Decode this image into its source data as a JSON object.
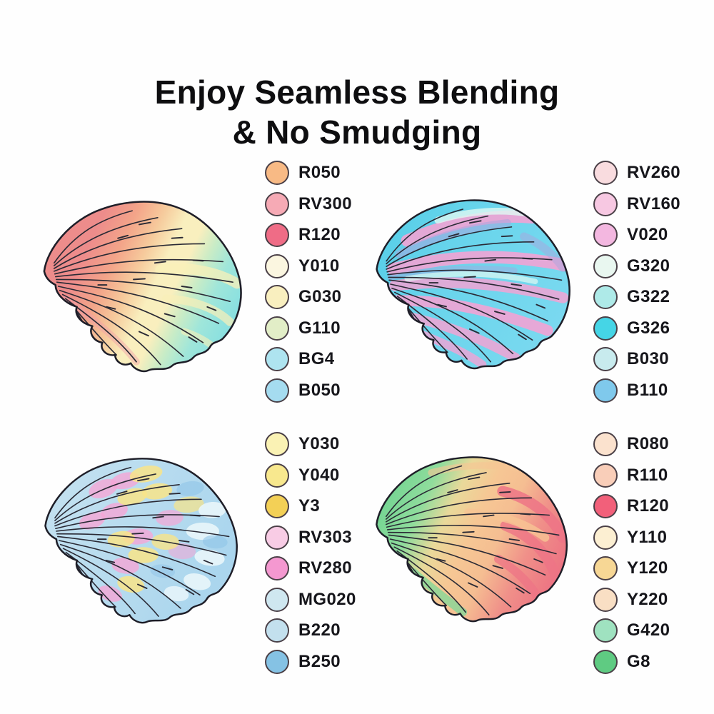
{
  "title": {
    "line1": "Enjoy Seamless Blending",
    "line2": "& No Smudging"
  },
  "ink": {
    "background": "#fefefe",
    "title_color": "#0e0e10",
    "label_color": "#16161b",
    "swatch_border": "#4a4047",
    "outline": "#1e1e28",
    "ridge": "#2a2a35"
  },
  "panels": [
    {
      "name": "top-left",
      "shell": {
        "style": "gradient coral to yellow to teal",
        "colors": [
          "#ED8C8B",
          "#F3A489",
          "#F6CA9C",
          "#F9EFBE",
          "#C9ECC6",
          "#9FE6DA",
          "#83DEE2",
          "#F9F0B8",
          "#F2A0A8"
        ]
      },
      "swatches": [
        {
          "code": "R050",
          "color": "#F8BA85"
        },
        {
          "code": "RV300",
          "color": "#F6AAB5"
        },
        {
          "code": "R120",
          "color": "#EF6C86"
        },
        {
          "code": "Y010",
          "color": "#FBF6E0"
        },
        {
          "code": "G030",
          "color": "#F9EFBF"
        },
        {
          "code": "G110",
          "color": "#E2EEC7"
        },
        {
          "code": "BG4",
          "color": "#AEE4F0"
        },
        {
          "code": "B050",
          "color": "#A5DCF0"
        }
      ]
    },
    {
      "name": "top-right",
      "shell": {
        "style": "cyan base with pink and lavender stripes",
        "colors": [
          "#58CFE8",
          "#6AD5EC",
          "#7BD9F0",
          "#F2A3D4",
          "#A9A6DE",
          "#DFF9F2"
        ]
      },
      "swatches": [
        {
          "code": "RV260",
          "color": "#F9DCDF"
        },
        {
          "code": "RV160",
          "color": "#F7C8E2"
        },
        {
          "code": "V020",
          "color": "#F3B7E0"
        },
        {
          "code": "G320",
          "color": "#E9F7F0"
        },
        {
          "code": "G322",
          "color": "#AEEAE8"
        },
        {
          "code": "G326",
          "color": "#45D5E6"
        },
        {
          "code": "B030",
          "color": "#C8EBEE"
        },
        {
          "code": "B110",
          "color": "#7FC9EC"
        }
      ]
    },
    {
      "name": "bottom-left",
      "shell": {
        "style": "pale blue base with pink and yellow patches",
        "colors": [
          "#C6E2F0",
          "#ABD6EE",
          "#F5A6D6",
          "#F8E488",
          "#E9F6FA",
          "#8FC4E8"
        ]
      },
      "swatches": [
        {
          "code": "Y030",
          "color": "#FAF2B4"
        },
        {
          "code": "Y040",
          "color": "#F8E88E"
        },
        {
          "code": "Y3",
          "color": "#F3D056"
        },
        {
          "code": "RV303",
          "color": "#F8CCE5"
        },
        {
          "code": "RV280",
          "color": "#F498D0"
        },
        {
          "code": "MG020",
          "color": "#CFE7F0"
        },
        {
          "code": "B220",
          "color": "#C3E0EE"
        },
        {
          "code": "B250",
          "color": "#85C2E4"
        }
      ]
    },
    {
      "name": "bottom-right",
      "shell": {
        "style": "gradient green to peach to red",
        "colors": [
          "#72D492",
          "#8FDC9C",
          "#E9D99A",
          "#F6C794",
          "#F5BE92",
          "#F09089",
          "#EC6F82",
          "#ED7486",
          "#F7C494",
          "#7ED898"
        ]
      },
      "swatches": [
        {
          "code": "R080",
          "color": "#FBE2CE"
        },
        {
          "code": "R110",
          "color": "#F9CEB9"
        },
        {
          "code": "R120",
          "color": "#F2607A"
        },
        {
          "code": "Y110",
          "color": "#FCEFD2"
        },
        {
          "code": "Y120",
          "color": "#F7D795"
        },
        {
          "code": "Y220",
          "color": "#F9DFC4"
        },
        {
          "code": "G420",
          "color": "#9FE2C0"
        },
        {
          "code": "G8",
          "color": "#5FCB82"
        }
      ]
    }
  ]
}
